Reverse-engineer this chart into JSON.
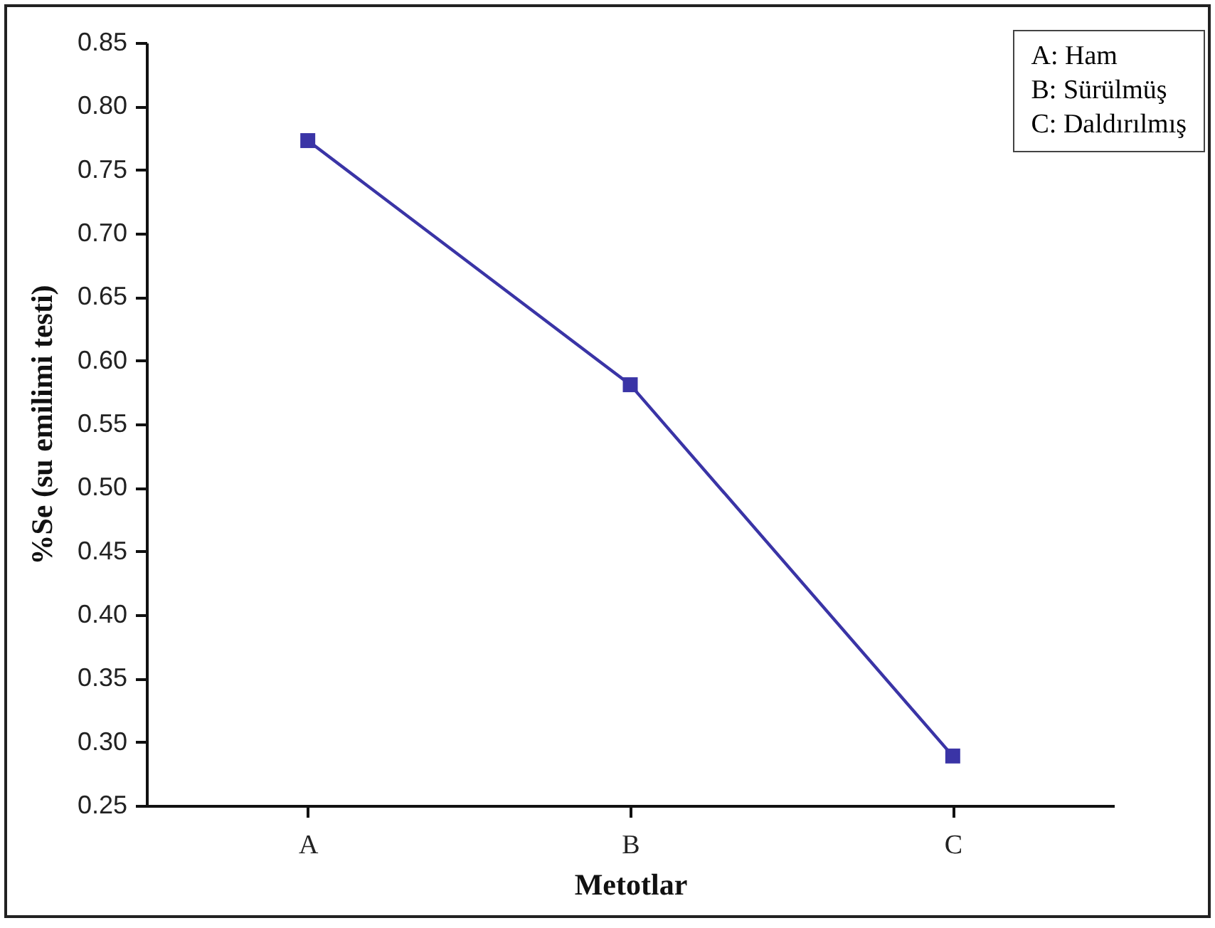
{
  "chart_data": {
    "type": "line",
    "xlabel": "Metotlar",
    "ylabel": "%Se (su emilimi testi)",
    "categories": [
      "A",
      "B",
      "C"
    ],
    "series": [
      {
        "color": "#3a34a6",
        "values": [
          0.773,
          0.581,
          0.289
        ]
      }
    ],
    "ylim": [
      0.25,
      0.85
    ],
    "yticks": [
      0.25,
      {
        "value": 0.3,
        "label": "0.30"
      },
      0.35,
      {
        "value": 0.4,
        "label": "0.40"
      },
      0.45,
      {
        "value": 0.5,
        "label": "0.50"
      },
      0.55,
      {
        "value": 0.6,
        "label": "0.60"
      },
      0.65,
      {
        "value": 0.7,
        "label": "0.70"
      },
      0.75,
      {
        "value": 0.8,
        "label": "0.80"
      },
      0.85
    ],
    "marker": "square",
    "grid": false,
    "legend": false,
    "annotations": [
      "A: Ham",
      "B: Sürülmüş",
      "C: Daldırılmış"
    ]
  }
}
